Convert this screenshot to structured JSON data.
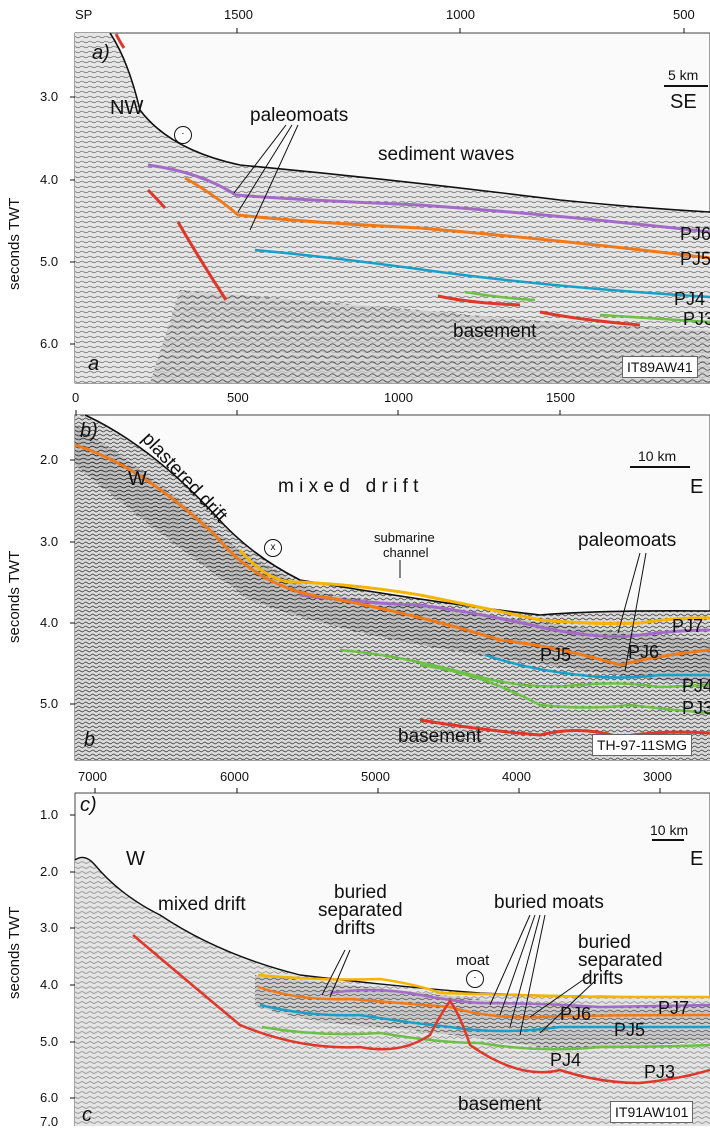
{
  "colors": {
    "pj7": "#f5b400",
    "pj6": "#a36bc7",
    "pj5": "#f07a1a",
    "pj4": "#1aa0c8",
    "pj3": "#6cc045",
    "basement": "#e0372a",
    "seismic_bg": "#d9d9d9"
  },
  "panel_a": {
    "axis_prefix": "SP",
    "x_ticks": [
      "1500",
      "1000",
      "500"
    ],
    "y_ticks": [
      "3.0",
      "4.0",
      "5.0",
      "6.0"
    ],
    "y_label": "seconds TWT",
    "panel_label": "a)",
    "corner_letter": "a",
    "orientation_left": "NW",
    "orientation_right": "SE",
    "scale": "5 km",
    "labels": {
      "paleomoats": "paleomoats",
      "sediment_waves": "sediment waves",
      "basement": "basement",
      "pj6": "PJ6",
      "pj5": "PJ5",
      "pj4": "PJ4",
      "pj3": "PJ3"
    },
    "line_id": "IT89AW41",
    "flow_symbol": "⋅"
  },
  "panel_b": {
    "x_ticks": [
      "0",
      "500",
      "1000",
      "1500"
    ],
    "y_ticks": [
      "2.0",
      "3.0",
      "4.0",
      "5.0"
    ],
    "y_label": "seconds TWT",
    "panel_label": "b)",
    "corner_letter": "b",
    "orientation_left": "W",
    "orientation_right": "E",
    "scale": "10 km",
    "labels": {
      "plastered_drift": "plastered drift",
      "mixed_drift": "m i x e d   d r i f t",
      "submarine_channel_1": "submarine",
      "submarine_channel_2": "channel",
      "paleomoats": "paleomoats",
      "basement": "basement",
      "pj7": "PJ7",
      "pj6": "PJ6",
      "pj5": "PJ5",
      "pj4": "PJ4",
      "pj3": "PJ3"
    },
    "line_id": "TH-97-11SMG",
    "flow_symbol": "x"
  },
  "panel_c": {
    "x_ticks": [
      "7000",
      "6000",
      "5000",
      "4000",
      "3000"
    ],
    "y_ticks": [
      "1.0",
      "2.0",
      "3.0",
      "4.0",
      "5.0",
      "6.0",
      "7.0"
    ],
    "y_label": "seconds TWT",
    "panel_label": "c)",
    "corner_letter": "c",
    "orientation_left": "W",
    "orientation_right": "E",
    "scale": "10 km",
    "labels": {
      "mixed_drift": "mixed drift",
      "buried_separated_drifts_1": "buried",
      "buried_separated_drifts_2": "separated",
      "buried_separated_drifts_3": "drifts",
      "buried_moats": "buried moats",
      "buried_separated_drifts_right_1": "buried",
      "buried_separated_drifts_right_2": "separated",
      "buried_separated_drifts_right_3": "drifts",
      "moat": "moat",
      "basement": "basement",
      "pj7": "PJ7",
      "pj6": "PJ6",
      "pj5": "PJ5",
      "pj4": "PJ4",
      "pj3": "PJ3"
    },
    "line_id": "IT91AW101",
    "flow_symbol": "⋅"
  }
}
